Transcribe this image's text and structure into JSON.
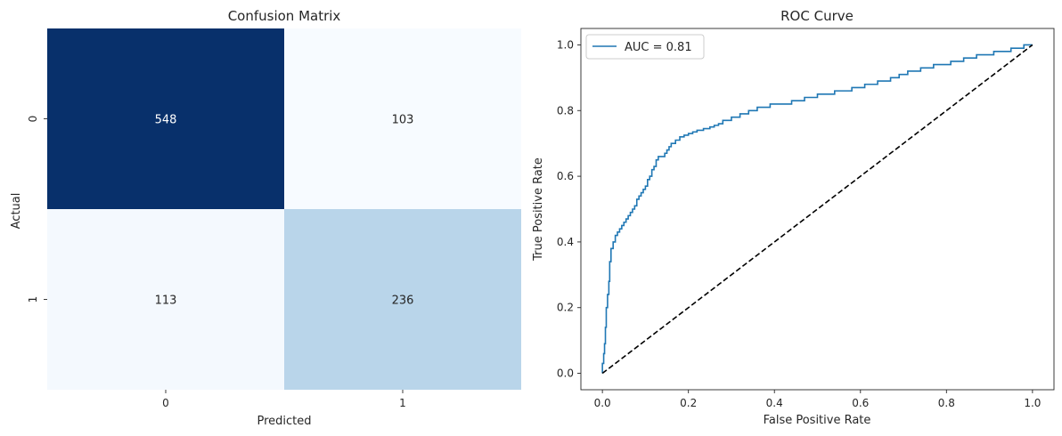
{
  "chart_data": [
    {
      "type": "heatmap",
      "title": "Confusion Matrix",
      "xlabel": "Predicted",
      "ylabel": "Actual",
      "x_categories": [
        "0",
        "1"
      ],
      "y_categories": [
        "0",
        "1"
      ],
      "values": [
        [
          548,
          103
        ],
        [
          113,
          236
        ]
      ],
      "colormap": "Blues",
      "colors": {
        "548": "#08306b",
        "103": "#f7fbff",
        "113": "#f4f9fe",
        "236": "#b9d5ea"
      },
      "annotations": true,
      "colorbar": false
    },
    {
      "type": "line",
      "title": "ROC Curve",
      "xlabel": "False Positive Rate",
      "ylabel": "True Positive Rate",
      "xlim": [
        -0.05,
        1.05
      ],
      "ylim": [
        -0.05,
        1.05
      ],
      "xticks": [
        "0.0",
        "0.2",
        "0.4",
        "0.6",
        "0.8",
        "1.0"
      ],
      "yticks": [
        "0.0",
        "0.2",
        "0.4",
        "0.6",
        "0.8",
        "1.0"
      ],
      "legend_position": "upper-left",
      "grid": false,
      "series": [
        {
          "name": "AUC = 0.81",
          "color": "#1f77b4",
          "style": "step",
          "points": [
            [
              0,
              0
            ],
            [
              0,
              0.03
            ],
            [
              0.003,
              0.03
            ],
            [
              0.003,
              0.06
            ],
            [
              0.005,
              0.06
            ],
            [
              0.005,
              0.09
            ],
            [
              0.007,
              0.09
            ],
            [
              0.007,
              0.14
            ],
            [
              0.009,
              0.14
            ],
            [
              0.009,
              0.2
            ],
            [
              0.012,
              0.2
            ],
            [
              0.012,
              0.24
            ],
            [
              0.015,
              0.24
            ],
            [
              0.015,
              0.28
            ],
            [
              0.017,
              0.28
            ],
            [
              0.017,
              0.34
            ],
            [
              0.02,
              0.34
            ],
            [
              0.02,
              0.38
            ],
            [
              0.025,
              0.38
            ],
            [
              0.025,
              0.4
            ],
            [
              0.03,
              0.4
            ],
            [
              0.03,
              0.42
            ],
            [
              0.035,
              0.42
            ],
            [
              0.035,
              0.43
            ],
            [
              0.04,
              0.43
            ],
            [
              0.04,
              0.44
            ],
            [
              0.045,
              0.44
            ],
            [
              0.045,
              0.45
            ],
            [
              0.05,
              0.45
            ],
            [
              0.05,
              0.46
            ],
            [
              0.055,
              0.46
            ],
            [
              0.055,
              0.47
            ],
            [
              0.06,
              0.47
            ],
            [
              0.06,
              0.48
            ],
            [
              0.065,
              0.48
            ],
            [
              0.065,
              0.49
            ],
            [
              0.07,
              0.49
            ],
            [
              0.07,
              0.5
            ],
            [
              0.075,
              0.5
            ],
            [
              0.075,
              0.51
            ],
            [
              0.08,
              0.51
            ],
            [
              0.08,
              0.53
            ],
            [
              0.085,
              0.53
            ],
            [
              0.085,
              0.54
            ],
            [
              0.09,
              0.54
            ],
            [
              0.09,
              0.55
            ],
            [
              0.095,
              0.55
            ],
            [
              0.095,
              0.56
            ],
            [
              0.1,
              0.56
            ],
            [
              0.1,
              0.57
            ],
            [
              0.105,
              0.57
            ],
            [
              0.105,
              0.59
            ],
            [
              0.11,
              0.59
            ],
            [
              0.11,
              0.6
            ],
            [
              0.115,
              0.6
            ],
            [
              0.115,
              0.62
            ],
            [
              0.12,
              0.62
            ],
            [
              0.12,
              0.63
            ],
            [
              0.125,
              0.63
            ],
            [
              0.125,
              0.65
            ],
            [
              0.13,
              0.65
            ],
            [
              0.13,
              0.66
            ],
            [
              0.145,
              0.66
            ],
            [
              0.145,
              0.67
            ],
            [
              0.15,
              0.67
            ],
            [
              0.15,
              0.68
            ],
            [
              0.155,
              0.68
            ],
            [
              0.155,
              0.69
            ],
            [
              0.16,
              0.69
            ],
            [
              0.16,
              0.7
            ],
            [
              0.17,
              0.7
            ],
            [
              0.17,
              0.71
            ],
            [
              0.18,
              0.71
            ],
            [
              0.18,
              0.72
            ],
            [
              0.19,
              0.72
            ],
            [
              0.19,
              0.725
            ],
            [
              0.2,
              0.725
            ],
            [
              0.2,
              0.73
            ],
            [
              0.21,
              0.73
            ],
            [
              0.21,
              0.735
            ],
            [
              0.22,
              0.735
            ],
            [
              0.22,
              0.74
            ],
            [
              0.235,
              0.74
            ],
            [
              0.235,
              0.745
            ],
            [
              0.25,
              0.745
            ],
            [
              0.25,
              0.75
            ],
            [
              0.26,
              0.75
            ],
            [
              0.26,
              0.755
            ],
            [
              0.27,
              0.755
            ],
            [
              0.27,
              0.76
            ],
            [
              0.28,
              0.76
            ],
            [
              0.28,
              0.77
            ],
            [
              0.3,
              0.77
            ],
            [
              0.3,
              0.78
            ],
            [
              0.32,
              0.78
            ],
            [
              0.32,
              0.79
            ],
            [
              0.34,
              0.79
            ],
            [
              0.34,
              0.8
            ],
            [
              0.36,
              0.8
            ],
            [
              0.36,
              0.81
            ],
            [
              0.39,
              0.81
            ],
            [
              0.39,
              0.82
            ],
            [
              0.44,
              0.82
            ],
            [
              0.44,
              0.83
            ],
            [
              0.47,
              0.83
            ],
            [
              0.47,
              0.84
            ],
            [
              0.5,
              0.84
            ],
            [
              0.5,
              0.85
            ],
            [
              0.54,
              0.85
            ],
            [
              0.54,
              0.86
            ],
            [
              0.58,
              0.86
            ],
            [
              0.58,
              0.87
            ],
            [
              0.61,
              0.87
            ],
            [
              0.61,
              0.88
            ],
            [
              0.64,
              0.88
            ],
            [
              0.64,
              0.89
            ],
            [
              0.67,
              0.89
            ],
            [
              0.67,
              0.9
            ],
            [
              0.69,
              0.9
            ],
            [
              0.69,
              0.91
            ],
            [
              0.71,
              0.91
            ],
            [
              0.71,
              0.92
            ],
            [
              0.74,
              0.92
            ],
            [
              0.74,
              0.93
            ],
            [
              0.77,
              0.93
            ],
            [
              0.77,
              0.94
            ],
            [
              0.81,
              0.94
            ],
            [
              0.81,
              0.95
            ],
            [
              0.84,
              0.95
            ],
            [
              0.84,
              0.96
            ],
            [
              0.87,
              0.96
            ],
            [
              0.87,
              0.97
            ],
            [
              0.91,
              0.97
            ],
            [
              0.91,
              0.98
            ],
            [
              0.95,
              0.98
            ],
            [
              0.95,
              0.99
            ],
            [
              0.98,
              0.99
            ],
            [
              0.98,
              1.0
            ],
            [
              1.0,
              1.0
            ]
          ]
        },
        {
          "name": "",
          "color": "#000000",
          "style": "dashed",
          "points": [
            [
              0,
              0
            ],
            [
              1,
              1
            ]
          ]
        }
      ]
    }
  ]
}
